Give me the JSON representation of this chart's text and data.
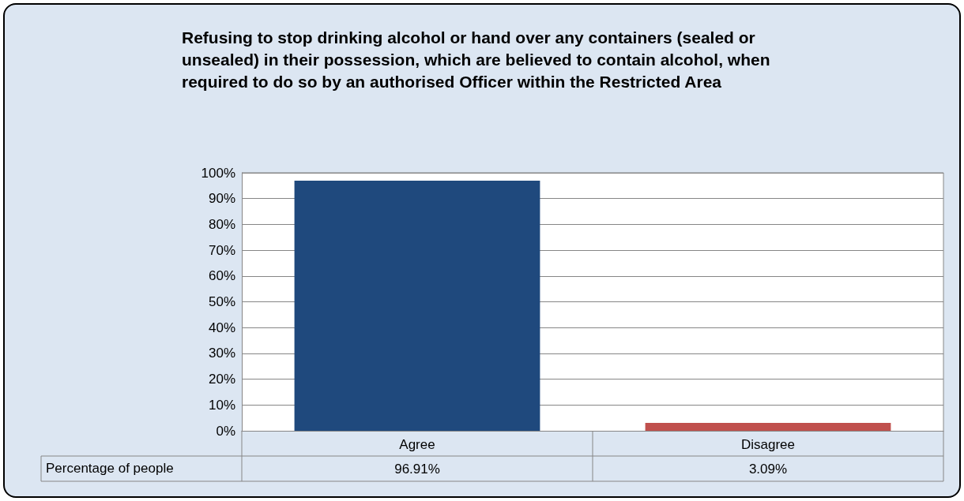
{
  "chart_data": {
    "type": "bar",
    "title": "Refusing to stop drinking alcohol or hand over any containers (sealed or unsealed) in their possession, which are believed to contain alcohol, when required to do so by an authorised Officer within the Restricted Area",
    "categories": [
      "Agree",
      "Disagree"
    ],
    "series": [
      {
        "name": "Percentage of people",
        "values": [
          96.91,
          3.09
        ],
        "colors": [
          "#1f497d",
          "#c0504d"
        ],
        "value_labels": [
          "96.91%",
          "3.09%"
        ]
      }
    ],
    "ylim": [
      0,
      100
    ],
    "yticks": [
      {
        "value": 0,
        "label": "0%"
      },
      {
        "value": 10,
        "label": "10%"
      },
      {
        "value": 20,
        "label": "20%"
      },
      {
        "value": 30,
        "label": "30%"
      },
      {
        "value": 40,
        "label": "40%"
      },
      {
        "value": 50,
        "label": "50%"
      },
      {
        "value": 60,
        "label": "60%"
      },
      {
        "value": 70,
        "label": "70%"
      },
      {
        "value": 80,
        "label": "80%"
      },
      {
        "value": 90,
        "label": "90%"
      },
      {
        "value": 100,
        "label": "100%"
      }
    ],
    "grid": "y",
    "legend": false
  }
}
